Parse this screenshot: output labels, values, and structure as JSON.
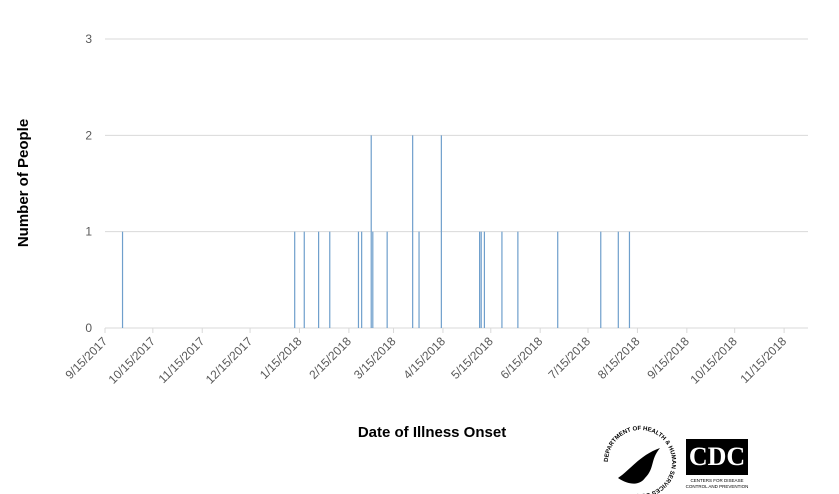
{
  "chart_data": {
    "type": "bar",
    "y_label": "Number of People",
    "x_label": "Date of Illness Onset",
    "color": "#6f9fcc",
    "x": [
      "2017-09-26",
      "2018-01-12",
      "2018-01-18",
      "2018-01-27",
      "2018-02-03",
      "2018-02-21",
      "2018-02-23",
      "2018-03-01",
      "2018-03-02",
      "2018-03-11",
      "2018-03-27",
      "2018-03-31",
      "2018-04-14",
      "2018-05-08",
      "2018-05-09",
      "2018-05-11",
      "2018-05-22",
      "2018-06-01",
      "2018-06-26",
      "2018-07-23",
      "2018-08-03",
      "2018-08-10"
    ],
    "values": [
      1,
      1,
      1,
      1,
      1,
      1,
      1,
      2,
      1,
      1,
      2,
      1,
      2,
      1,
      1,
      1,
      1,
      1,
      1,
      1,
      1,
      1
    ],
    "xlim": [
      "2017-09-15",
      "2018-11-30"
    ],
    "xticks": [
      {
        "value": "2017-09-15",
        "label": "9/15/2017"
      },
      {
        "value": "2017-10-15",
        "label": "10/15/2017"
      },
      {
        "value": "2017-11-15",
        "label": "11/15/2017"
      },
      {
        "value": "2017-12-15",
        "label": "12/15/2017"
      },
      {
        "value": "2018-01-15",
        "label": "1/15/2018"
      },
      {
        "value": "2018-02-15",
        "label": "2/15/2018"
      },
      {
        "value": "2018-03-15",
        "label": "3/15/2018"
      },
      {
        "value": "2018-04-15",
        "label": "4/15/2018"
      },
      {
        "value": "2018-05-15",
        "label": "5/15/2018"
      },
      {
        "value": "2018-06-15",
        "label": "6/15/2018"
      },
      {
        "value": "2018-07-15",
        "label": "7/15/2018"
      },
      {
        "value": "2018-08-15",
        "label": "8/15/2018"
      },
      {
        "value": "2018-09-15",
        "label": "9/15/2018"
      },
      {
        "value": "2018-10-15",
        "label": "10/15/2018"
      },
      {
        "value": "2018-11-15",
        "label": "11/15/2018"
      }
    ],
    "ylim": [
      0,
      3
    ],
    "yticks": [
      0,
      1,
      2,
      3
    ],
    "grid": true
  },
  "logos": {
    "hhs": "DEPARTMENT OF HEALTH & HUMAN SERVICES USA",
    "cdc": "CDC",
    "cdc_tagline_1": "CENTERS FOR DISEASE",
    "cdc_tagline_2": "CONTROL AND PREVENTION"
  }
}
